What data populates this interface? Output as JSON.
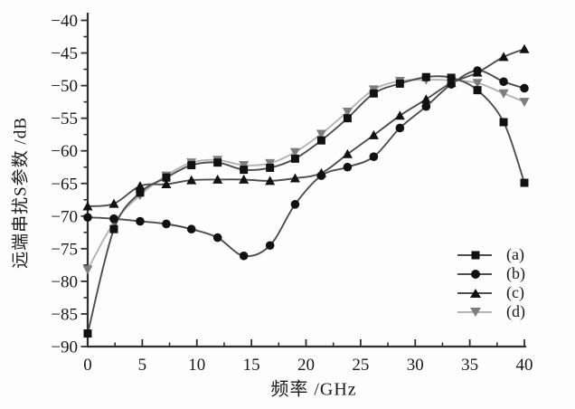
{
  "chart_data": {
    "type": "line",
    "title": "",
    "xlabel": "频率 /GHz",
    "ylabel": "远端串扰S参数 /dB",
    "xlim": [
      0,
      40
    ],
    "ylim": [
      -90,
      -40
    ],
    "xticks_major": [
      0,
      5,
      10,
      15,
      20,
      25,
      30,
      35,
      40
    ],
    "xticks_minor": [
      2.5,
      7.5,
      12.5,
      17.5,
      22.5,
      27.5,
      32.5,
      37.5
    ],
    "yticks_major": [
      -40,
      -45,
      -50,
      -55,
      -60,
      -65,
      -70,
      -75,
      -80,
      -85,
      -90
    ],
    "yticks_minor": [
      -42.5,
      -47.5,
      -52.5,
      -57.5,
      -62.5,
      -67.5,
      -72.5,
      -77.5,
      -82.5,
      -87.5
    ],
    "grid": "off",
    "legend_position": "inside-right-center",
    "axis_color": "#2f2f2f",
    "text_color": "#1a1a1a",
    "background": "#fdfdfd",
    "x": [
      0,
      2.4,
      4.8,
      7.2,
      9.5,
      11.9,
      14.3,
      16.7,
      19,
      21.4,
      23.8,
      26.2,
      28.6,
      31,
      33.3,
      35.7,
      38.1,
      40
    ],
    "series": [
      {
        "name": "(a)",
        "marker": "square",
        "marker_color": "#111111",
        "line_color": "#4d4d4d",
        "values": [
          -88,
          -72,
          -66.4,
          -64.1,
          -62.2,
          -61.8,
          -62.9,
          -62.6,
          -61.2,
          -58.4,
          -55,
          -51.2,
          -49.7,
          -48.7,
          -48.8,
          -50.7,
          -55.6,
          -64.9
        ]
      },
      {
        "name": "(b)",
        "marker": "circle",
        "marker_color": "#111111",
        "line_color": "#4d4d4d",
        "values": [
          -70.2,
          -70.4,
          -70.8,
          -71.2,
          -72,
          -73.3,
          -76.1,
          -74.5,
          -68.2,
          -63.8,
          -62.5,
          -60.9,
          -56.5,
          -53.2,
          -49.8,
          -47.7,
          -49.4,
          -50.4
        ]
      },
      {
        "name": "(c)",
        "marker": "triangle-up",
        "marker_color": "#111111",
        "line_color": "#4d4d4d",
        "values": [
          -68.5,
          -68.1,
          -65.4,
          -65.1,
          -64.5,
          -64.4,
          -64.4,
          -64.6,
          -64.2,
          -63.4,
          -60.5,
          -57.6,
          -54.6,
          -52.1,
          -49.6,
          -48,
          -45.6,
          -44.4
        ]
      },
      {
        "name": "(d)",
        "marker": "triangle-down",
        "marker_color": "#7d7d7d",
        "line_color": "#b3b3b3",
        "values": [
          -78.2,
          -71,
          -66.8,
          -63.8,
          -61.8,
          -61.4,
          -62.2,
          -61.9,
          -60.2,
          -57.4,
          -54,
          -50.6,
          -49.3,
          -49.1,
          -49.2,
          -49.6,
          -51.2,
          -52.5
        ]
      }
    ]
  }
}
